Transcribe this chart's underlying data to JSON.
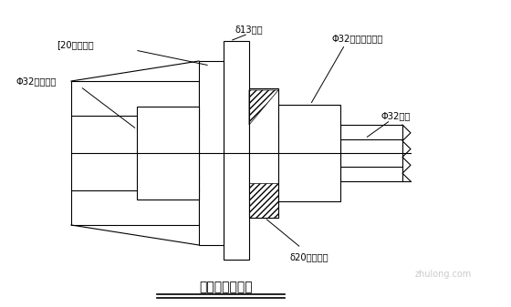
{
  "title": "拉杆位置大样图",
  "bg_color": "#ffffff",
  "line_color": "#000000",
  "labels": {
    "channel_steel": "[20加强槽钢",
    "formwork": "δ13模面",
    "nut_long": "Φ32螺母（加长）",
    "nut_rough": "Φ32粗制螺母",
    "tie_rod": "Φ32拉杆",
    "steel_plate": "δ20加强钢板"
  },
  "watermark": "zhulong.com"
}
